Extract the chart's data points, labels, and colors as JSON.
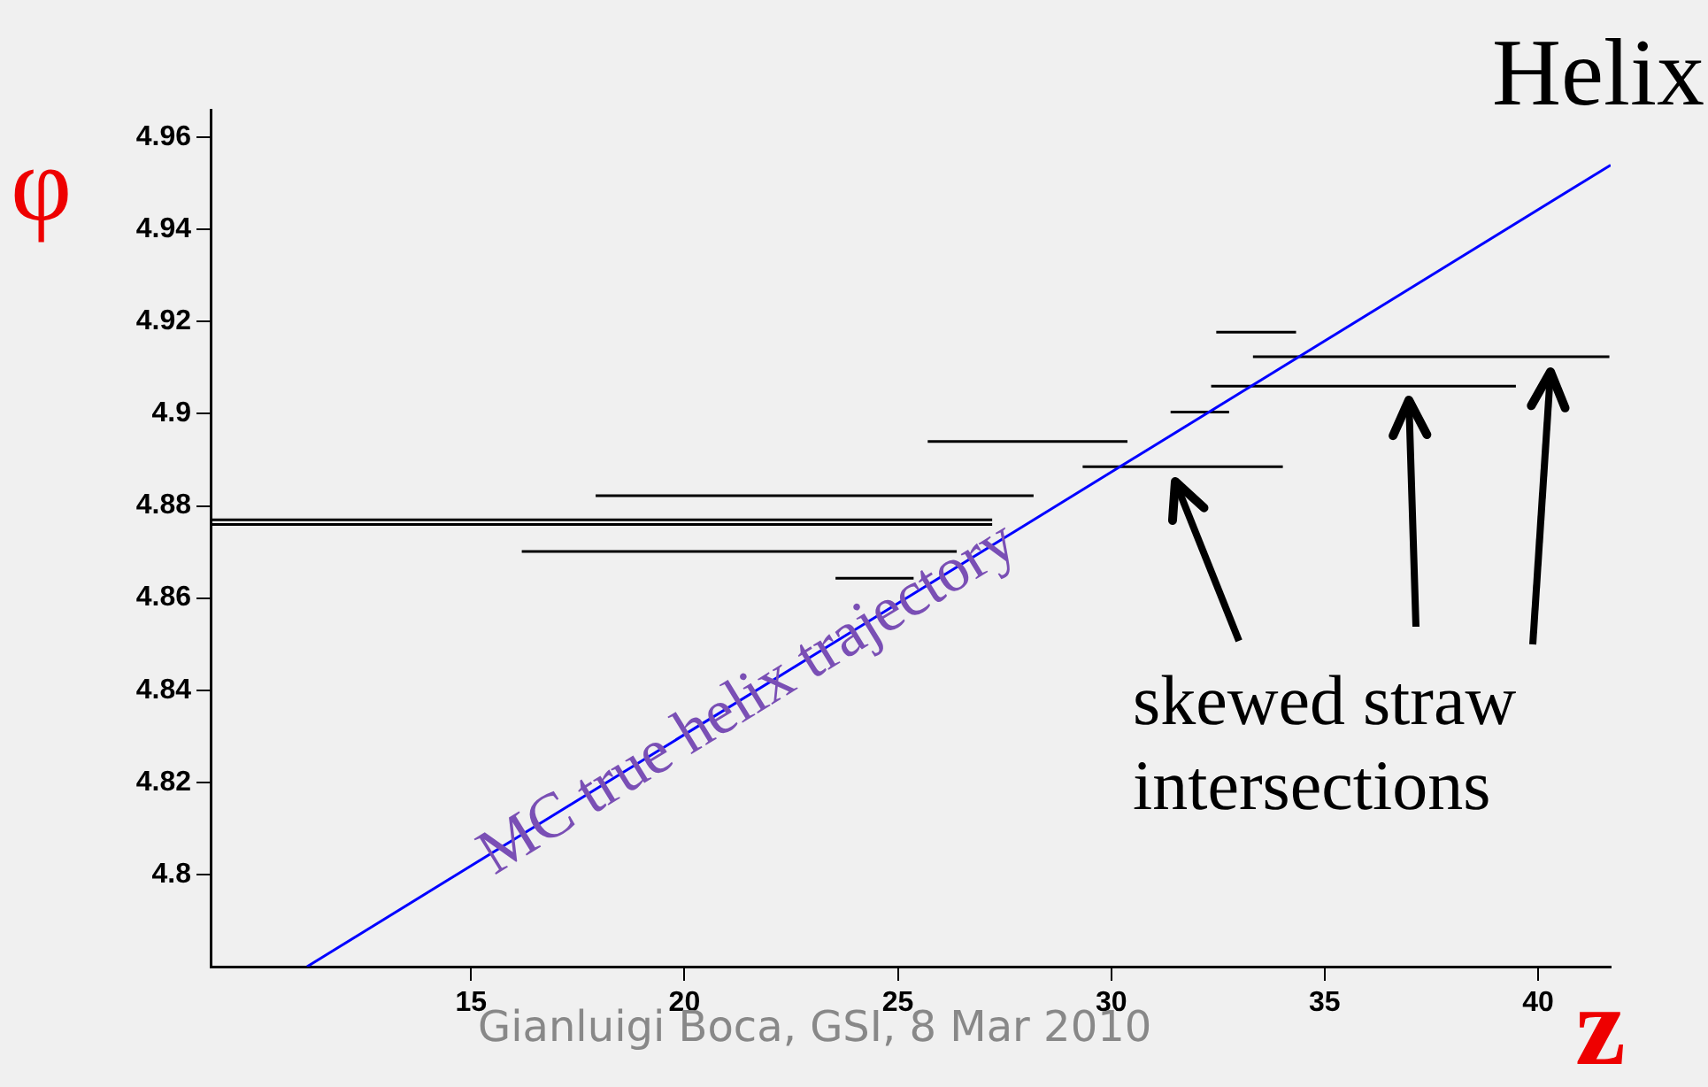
{
  "chart_data": {
    "type": "line",
    "title": "Helix",
    "xlabel": "z",
    "ylabel": "φ",
    "xlim": [
      8.9,
      41.7
    ],
    "ylim": [
      4.78,
      4.966
    ],
    "xticks": [
      15,
      20,
      25,
      30,
      35,
      40
    ],
    "yticks": [
      4.8,
      4.82,
      4.84,
      4.86,
      4.88,
      4.9,
      4.92,
      4.94,
      4.96
    ],
    "grid": false,
    "legend": false,
    "marker": "none",
    "line_style": "solid",
    "series": [
      {
        "color": "#0000ff",
        "x": [
          11.16,
          41.7
        ],
        "values": [
          4.78,
          4.954
        ]
      },
      {
        "color": "#000000",
        "x": [
          17.92,
          28.18
        ],
        "values": [
          4.8822,
          4.8822
        ]
      },
      {
        "color": "#000000",
        "x": [
          8.9,
          27.21
        ],
        "values": [
          4.877,
          4.877
        ]
      },
      {
        "color": "#000000",
        "x": [
          8.9,
          27.21
        ],
        "values": [
          4.876,
          4.876
        ]
      },
      {
        "color": "#000000",
        "x": [
          16.19,
          26.38
        ],
        "values": [
          4.8701,
          4.8701
        ]
      },
      {
        "color": "#000000",
        "x": [
          23.54,
          25.37
        ],
        "values": [
          4.8643,
          4.8643
        ]
      },
      {
        "color": "#000000",
        "x": [
          25.7,
          30.38
        ],
        "values": [
          4.894,
          4.894
        ]
      },
      {
        "color": "#000000",
        "x": [
          29.33,
          34.02
        ],
        "values": [
          4.8885,
          4.8885
        ]
      },
      {
        "color": "#000000",
        "x": [
          31.39,
          32.76
        ],
        "values": [
          4.9004,
          4.9004
        ]
      },
      {
        "color": "#000000",
        "x": [
          32.34,
          39.48
        ],
        "values": [
          4.906,
          4.906
        ]
      },
      {
        "color": "#000000",
        "x": [
          33.32,
          41.67
        ],
        "values": [
          4.9124,
          4.9124
        ]
      },
      {
        "color": "#000000",
        "x": [
          32.46,
          34.33
        ],
        "values": [
          4.9177,
          4.9177
        ]
      }
    ],
    "annotations": [
      {
        "text": "MC true helix trajectory",
        "x": 21.5,
        "y": 4.838
      },
      "skewed straw intersections",
      "Gianluigi Boca, GSI, 8 Mar 2010"
    ]
  }
}
